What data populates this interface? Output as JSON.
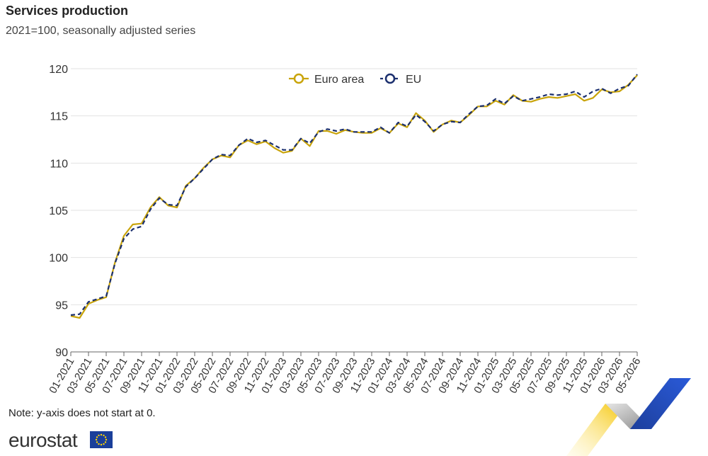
{
  "header": {
    "title": "Services production",
    "subtitle": "2021=100, seasonally adjusted series"
  },
  "footer": {
    "note": "Note: y-axis does not start at 0.",
    "brand": "eurostat"
  },
  "colors": {
    "euro_area": "#c9a40a",
    "eu": "#1b2f6e",
    "grid": "#e2e2e2",
    "axis": "#666666"
  },
  "chart_data": {
    "type": "line",
    "ylim": [
      90,
      120
    ],
    "yticks": [
      90,
      95,
      100,
      105,
      110,
      115,
      120
    ],
    "grid": true,
    "legend_position": "top-center",
    "x_tick_labels": [
      "01-2021",
      "03-2021",
      "05-2021",
      "07-2021",
      "09-2021",
      "11-2021",
      "01-2022",
      "03-2022",
      "05-2022",
      "07-2022",
      "09-2022",
      "11-2022",
      "01-2023",
      "03-2023",
      "05-2023",
      "07-2023",
      "09-2023",
      "11-2023",
      "01-2024",
      "03-2024",
      "05-2024",
      "07-2024",
      "09-2024",
      "11-2024",
      "01-2025",
      "03-2025",
      "05-2025",
      "07-2025",
      "09-2025",
      "11-2025",
      "01-2026",
      "03-2026",
      "05-2026"
    ],
    "x": [
      "01-2021",
      "02-2021",
      "03-2021",
      "04-2021",
      "05-2021",
      "06-2021",
      "07-2021",
      "08-2021",
      "09-2021",
      "10-2021",
      "11-2021",
      "12-2021",
      "01-2022",
      "02-2022",
      "03-2022",
      "04-2022",
      "05-2022",
      "06-2022",
      "07-2022",
      "08-2022",
      "09-2022",
      "10-2022",
      "11-2022",
      "12-2022",
      "01-2023",
      "02-2023",
      "03-2023",
      "04-2023",
      "05-2023",
      "06-2023",
      "07-2023",
      "08-2023",
      "09-2023",
      "10-2023",
      "11-2023",
      "12-2023",
      "01-2024",
      "02-2024",
      "03-2024",
      "04-2024",
      "05-2024",
      "06-2024",
      "07-2024",
      "08-2024",
      "09-2024",
      "10-2024",
      "11-2024",
      "12-2024",
      "01-2025",
      "02-2025",
      "03-2025",
      "04-2025",
      "05-2025",
      "06-2025",
      "07-2025",
      "08-2025",
      "09-2025",
      "10-2025",
      "11-2025",
      "12-2025",
      "01-2026",
      "02-2026",
      "03-2026",
      "04-2026",
      "05-2026"
    ],
    "series": [
      {
        "name": "Euro area",
        "values": [
          93.8,
          93.6,
          95.1,
          95.5,
          95.8,
          99.5,
          102.3,
          103.5,
          103.6,
          105.3,
          106.4,
          105.5,
          105.3,
          107.6,
          108.4,
          109.5,
          110.4,
          110.8,
          110.6,
          111.9,
          112.4,
          112.0,
          112.3,
          111.6,
          111.1,
          111.3,
          112.6,
          111.8,
          113.4,
          113.4,
          113.1,
          113.5,
          113.3,
          113.2,
          113.2,
          113.7,
          113.2,
          114.2,
          113.8,
          115.3,
          114.5,
          113.3,
          114.1,
          114.5,
          114.3,
          115.1,
          116.0,
          116.0,
          116.6,
          116.2,
          117.2,
          116.6,
          116.5,
          116.8,
          117.0,
          116.9,
          117.1,
          117.3,
          116.6,
          116.9,
          117.8,
          117.5,
          117.6,
          118.3,
          119.3
        ]
      },
      {
        "name": "EU",
        "values": [
          93.9,
          94.0,
          95.3,
          95.6,
          95.9,
          99.4,
          102.0,
          103.0,
          103.3,
          105.1,
          106.3,
          105.6,
          105.5,
          107.5,
          108.4,
          109.4,
          110.4,
          110.9,
          110.8,
          111.9,
          112.6,
          112.2,
          112.4,
          111.9,
          111.4,
          111.4,
          112.6,
          112.1,
          113.3,
          113.6,
          113.4,
          113.6,
          113.3,
          113.3,
          113.3,
          113.8,
          113.2,
          114.3,
          113.9,
          115.1,
          114.4,
          113.4,
          114.1,
          114.4,
          114.3,
          115.2,
          116.0,
          116.1,
          116.8,
          116.3,
          117.1,
          116.6,
          116.8,
          117.0,
          117.3,
          117.2,
          117.3,
          117.6,
          117.0,
          117.6,
          117.9,
          117.4,
          117.9,
          118.2,
          119.4
        ]
      }
    ]
  }
}
